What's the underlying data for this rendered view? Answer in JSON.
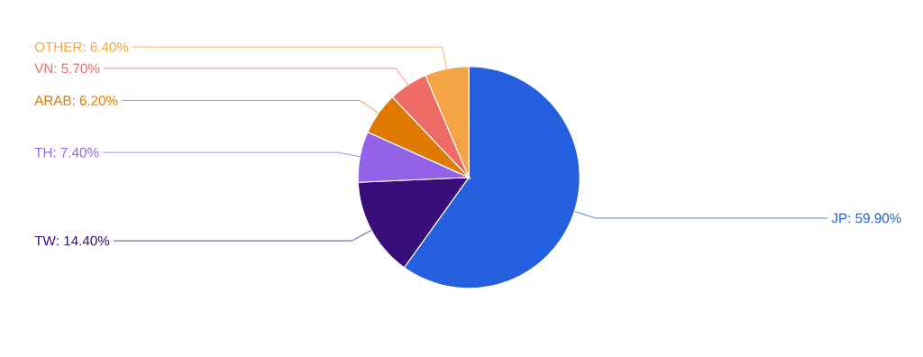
{
  "chart_data": {
    "type": "pie",
    "categories": [
      "JP",
      "TW",
      "TH",
      "ARAB",
      "VN",
      "OTHER"
    ],
    "values": [
      59.9,
      14.4,
      7.4,
      6.2,
      5.7,
      6.4
    ],
    "value_labels": [
      ": 59.90%",
      ": 14.40%",
      ": 7.40%",
      ": 6.20%",
      ": 5.70%",
      ": 6.40%"
    ],
    "colors": [
      "#2460dd",
      "#380e7b",
      "#9461e9",
      "#e07900",
      "#ee6a65",
      "#f4a445"
    ]
  }
}
